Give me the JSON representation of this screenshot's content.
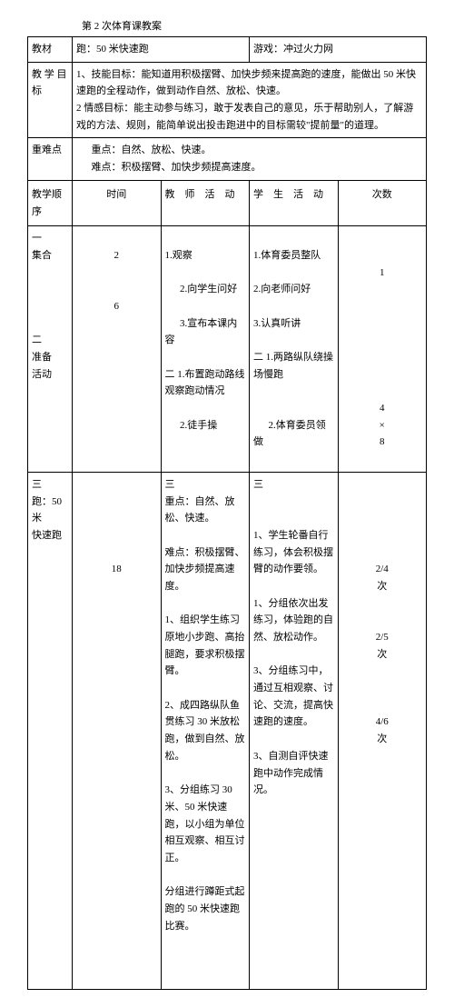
{
  "title": "第 2 次体育课教案",
  "row1": {
    "label": "教材",
    "col2": "跑：50 米快速跑",
    "col3": "游戏：冲过火力网"
  },
  "row2": {
    "label": "教 学 目标",
    "text1": "1、技能目标：能知道用积极摆臂、加快步频来提高跑的速度，能做出 50 米快速跑的全程动作，做到动作自然、放松、快速。",
    "text2": "2 情感目标：能主动参与练习，敢于发表自己的意见，乐于帮助别人，了解游戏的方法、规则，能简单说出投击跑进中的目标需较\"提前量\"的道理。"
  },
  "row3": {
    "label": "重难点",
    "line1": "重点：自然、放松、快速。",
    "line2": "难点：积极摆臂、加快步频提高速度。"
  },
  "header": {
    "c1": "教学顺序",
    "c2": "时间",
    "c3": "教　师　活　动",
    "c4": "学　生　活　动",
    "c5": "次数"
  },
  "body1": {
    "seq1": "一",
    "seq1b": "集合",
    "t1": "2",
    "a1": "1.观察",
    "a2": "2.向学生问好",
    "t2": "6",
    "a3": "3.宣布本课内容",
    "seq2": "二",
    "seq2b": "准备",
    "seq2c": "活动",
    "a4": "二 1.布置跑动路线",
    "a5": "观察跑动情况",
    "a6": "2.徒手操",
    "s1": "1.体育委员整队",
    "s2": "2.向老师问好",
    "s3": "3.认真听讲",
    "s4": "二 1.两路纵队绕操场慢跑",
    "s5": "2.体育委员领做",
    "cnt1": "1",
    "cnt2": "4",
    "cnt2x": "×",
    "cnt2b": "8"
  },
  "body2": {
    "seq3": "三",
    "seq3b": "跑：50 米",
    "seq3c": "快速跑",
    "a0": "三",
    "a_key1": "重点：自然、放松、快速。",
    "a_key2": "难点：积极摆臂、加快步频提高速度。",
    "t3": "18",
    "a1": "1、组织学生练习原地小步跑、高抬腿跑，要求积极摆臂。",
    "a2": "2、成四路纵队鱼贯练习 30 米放松跑，做到自然、放松。",
    "a3": "3、分组练习 30 米、50 米快速跑，以小组为单位相互观察、相互讨正。",
    "a4": "分组进行蹲距式起跑的 50 米快速跑比赛。",
    "s0": "三",
    "s1": "1、学生轮番自行练习，体会积极摆臂的动作要领。",
    "s2": "1、分组依次出发练习，体验跑的自然、放松动作。",
    "s3": "3、分组练习中，通过互相观察、讨论、交流，提高快速跑的速度。",
    "s4": "3、自测自评快速跑中动作完成情况。",
    "cnt3": "2/4",
    "cnt3b": "次",
    "cnt4": "2/5",
    "cnt4b": "次",
    "cnt5": "4/6",
    "cnt5b": "次"
  }
}
